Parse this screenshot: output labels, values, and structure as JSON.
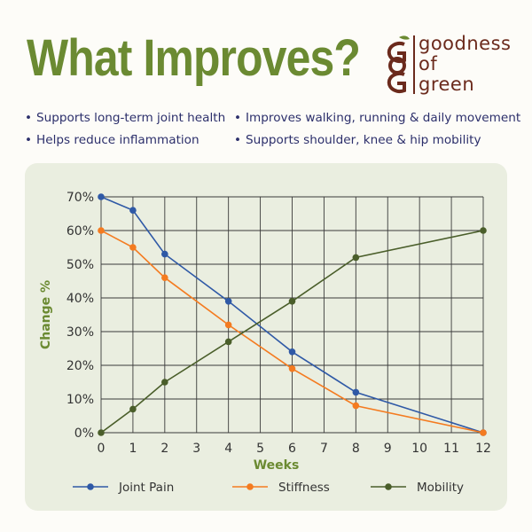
{
  "header": {
    "title": "What Improves?",
    "brand": {
      "line1": "goodness",
      "line2": "of",
      "line3": "green",
      "icon": "gog-monogram-logo"
    }
  },
  "benefits": [
    "Supports long-term joint health",
    "Improves walking, running & daily movement",
    "Helps reduce inflammation",
    "Supports shoulder, knee & hip mobility"
  ],
  "colors": {
    "title": "#6b8a32",
    "brand": "#6b2a1c",
    "joint_pain": "#2f59a6",
    "stiffness": "#f47b20",
    "mobility": "#4a5e2a",
    "panel_bg": "#eaeee0"
  },
  "chart_data": {
    "type": "line",
    "xlabel": "Weeks",
    "ylabel": "Change %",
    "x_ticks": [
      0,
      1,
      2,
      3,
      4,
      5,
      6,
      7,
      8,
      9,
      10,
      11,
      12
    ],
    "y_ticks": [
      "0%",
      "10%",
      "20%",
      "30%",
      "40%",
      "50%",
      "60%",
      "70%"
    ],
    "xlim": [
      0,
      12
    ],
    "ylim": [
      0,
      70
    ],
    "grid": true,
    "legend_position": "bottom",
    "series": [
      {
        "name": "Joint Pain",
        "color": "#2f59a6",
        "x": [
          0,
          1,
          2,
          4,
          6,
          8,
          12
        ],
        "y": [
          70,
          66,
          53,
          39,
          24,
          12,
          0
        ]
      },
      {
        "name": "Stiffness",
        "color": "#f47b20",
        "x": [
          0,
          1,
          2,
          4,
          6,
          8,
          12
        ],
        "y": [
          60,
          55,
          46,
          32,
          19,
          8,
          0
        ]
      },
      {
        "name": "Mobility",
        "color": "#4a5e2a",
        "x": [
          0,
          1,
          2,
          4,
          6,
          8,
          12
        ],
        "y": [
          0,
          7,
          15,
          27,
          39,
          52,
          60
        ]
      }
    ]
  }
}
